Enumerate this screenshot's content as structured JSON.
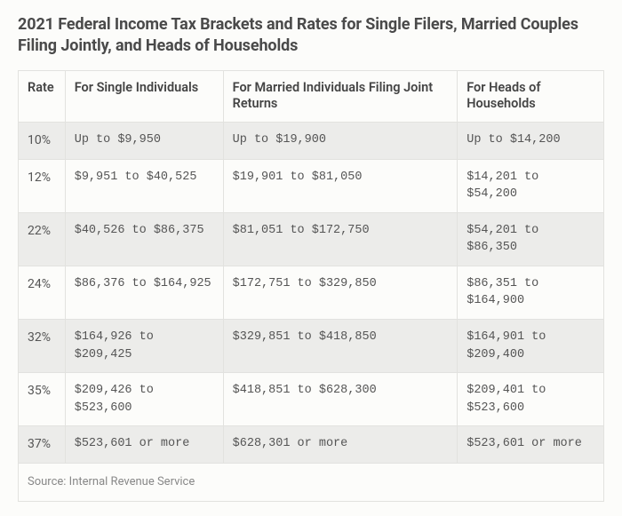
{
  "title": "2021 Federal Income Tax Brackets and Rates for Single Filers, Married Couples Filing Jointly, and Heads of Households",
  "table": {
    "type": "table",
    "columns": [
      {
        "key": "rate",
        "label": "Rate",
        "width_pct": 8
      },
      {
        "key": "single",
        "label": "For Single Individuals",
        "width_pct": 27
      },
      {
        "key": "married",
        "label": "For Married Individuals Filing Joint Returns",
        "width_pct": 40
      },
      {
        "key": "hoh",
        "label": "For Heads of Households",
        "width_pct": 25
      }
    ],
    "rows": [
      {
        "rate": "10%",
        "single": "Up to $9,950",
        "married": "Up to $19,900",
        "hoh": "Up to $14,200"
      },
      {
        "rate": "12%",
        "single": "$9,951 to $40,525",
        "married": "$19,901 to $81,050",
        "hoh": "$14,201 to $54,200"
      },
      {
        "rate": "22%",
        "single": "$40,526 to $86,375",
        "married": "$81,051 to $172,750",
        "hoh": "$54,201 to $86,350"
      },
      {
        "rate": "24%",
        "single": "$86,376 to $164,925",
        "married": "$172,751 to $329,850",
        "hoh": "$86,351 to $164,900"
      },
      {
        "rate": "32%",
        "single": "$164,926 to $209,425",
        "married": "$329,851 to $418,850",
        "hoh": "$164,901 to $209,400"
      },
      {
        "rate": "35%",
        "single": "$209,426 to $523,600",
        "married": "$418,851 to $628,300",
        "hoh": "$209,401 to $523,600"
      },
      {
        "rate": "37%",
        "single": "$523,601 or more",
        "married": "$628,301 or more",
        "hoh": "$523,601 or more"
      }
    ],
    "row_stripe_colors": {
      "odd": "#ececea",
      "even": "#fcfcfa"
    },
    "border_color": "#e2e2df",
    "header_fontsize_pt": 11,
    "cell_fontsize_pt": 10,
    "cell_font_family": "monospace",
    "source": "Source: Internal Revenue Service"
  },
  "colors": {
    "background": "#fcfcfa",
    "title_text": "#4a4a4a",
    "body_text": "#555555",
    "source_text": "#888888"
  }
}
